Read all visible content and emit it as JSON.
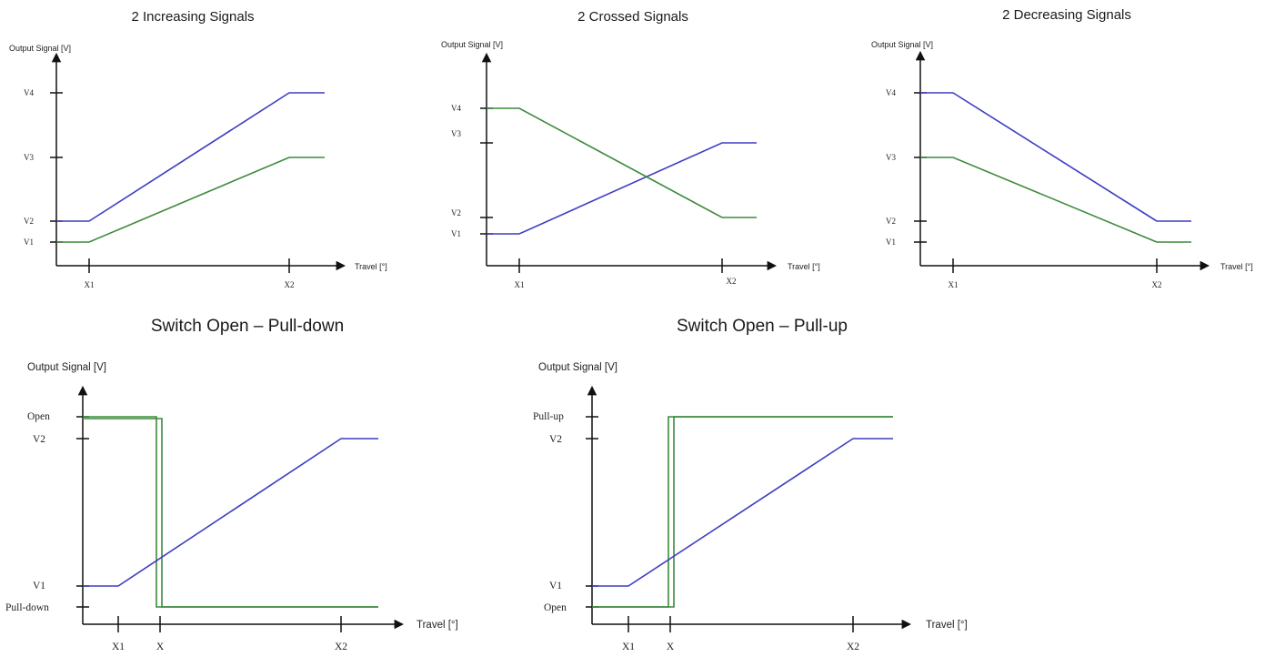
{
  "chart_data": [
    {
      "type": "line",
      "title": "2 Increasing Signals",
      "ylabel": "Output Signal [V]",
      "xlabel": "Travel [°]",
      "x_ticks": [
        "X1",
        "X2"
      ],
      "y_ticks": [
        "V1",
        "V2",
        "V3",
        "V4"
      ],
      "series": [
        {
          "color": "#3d3dc2",
          "points": [
            [
              "start",
              "V2"
            ],
            [
              "X1",
              "V2"
            ],
            [
              "X2",
              "V4"
            ],
            [
              "end",
              "V4"
            ]
          ]
        },
        {
          "color": "#3c8a3c",
          "points": [
            [
              "start",
              "V1"
            ],
            [
              "X1",
              "V1"
            ],
            [
              "X2",
              "V3"
            ],
            [
              "end",
              "V3"
            ]
          ]
        }
      ]
    },
    {
      "type": "line",
      "title": "2 Crossed Signals",
      "ylabel": "Output Signal [V]",
      "xlabel": "Travel [°]",
      "x_ticks": [
        "X1",
        "X2"
      ],
      "y_ticks": [
        "V1",
        "V2",
        "V3",
        "V4"
      ],
      "series": [
        {
          "color": "#3d3dc2",
          "points": [
            [
              "start",
              "V1"
            ],
            [
              "X1",
              "V1"
            ],
            [
              "X2",
              "V3"
            ],
            [
              "end",
              "V3"
            ]
          ]
        },
        {
          "color": "#3c8a3c",
          "points": [
            [
              "start",
              "V4"
            ],
            [
              "X1",
              "V4"
            ],
            [
              "X2",
              "V2"
            ],
            [
              "end",
              "V2"
            ]
          ]
        }
      ]
    },
    {
      "type": "line",
      "title": "2 Decreasing Signals",
      "ylabel": "Output Signal [V]",
      "xlabel": "Travel [°]",
      "x_ticks": [
        "X1",
        "X2"
      ],
      "y_ticks": [
        "V1",
        "V2",
        "V3",
        "V4"
      ],
      "series": [
        {
          "color": "#3d3dc2",
          "points": [
            [
              "start",
              "V4"
            ],
            [
              "X1",
              "V4"
            ],
            [
              "X2",
              "V2"
            ],
            [
              "end",
              "V2"
            ]
          ]
        },
        {
          "color": "#3c8a3c",
          "points": [
            [
              "start",
              "V3"
            ],
            [
              "X1",
              "V3"
            ],
            [
              "X2",
              "V1"
            ],
            [
              "end",
              "V1"
            ]
          ]
        }
      ]
    },
    {
      "type": "line",
      "title": "Switch Open – Pull-down",
      "ylabel": "Output Signal [V]",
      "xlabel": "Travel [°]",
      "x_ticks": [
        "X1",
        "X",
        "X2"
      ],
      "y_ticks": [
        "Pull-down",
        "V1",
        "V2",
        "Open"
      ],
      "series": [
        {
          "color": "#3d3dc2",
          "points": [
            [
              "start",
              "V1"
            ],
            [
              "X1",
              "V1"
            ],
            [
              "X2",
              "V2"
            ],
            [
              "end",
              "V2"
            ]
          ]
        },
        {
          "color": "#3c8a3c",
          "points": [
            [
              "start",
              "Open"
            ],
            [
              "X",
              "Open"
            ],
            [
              "X",
              "Pull-down"
            ],
            [
              "end",
              "Pull-down"
            ]
          ]
        }
      ]
    },
    {
      "type": "line",
      "title": "Switch Open – Pull-up",
      "ylabel": "Output Signal [V]",
      "xlabel": "Travel [°]",
      "x_ticks": [
        "X1",
        "X",
        "X2"
      ],
      "y_ticks": [
        "Open",
        "V1",
        "V2",
        "Pull-up"
      ],
      "series": [
        {
          "color": "#3d3dc2",
          "points": [
            [
              "start",
              "V1"
            ],
            [
              "X1",
              "V1"
            ],
            [
              "X2",
              "V2"
            ],
            [
              "end",
              "V2"
            ]
          ]
        },
        {
          "color": "#3c8a3c",
          "points": [
            [
              "start",
              "Open"
            ],
            [
              "X",
              "Open"
            ],
            [
              "X",
              "Pull-up"
            ],
            [
              "end",
              "Pull-up"
            ]
          ]
        }
      ]
    }
  ]
}
